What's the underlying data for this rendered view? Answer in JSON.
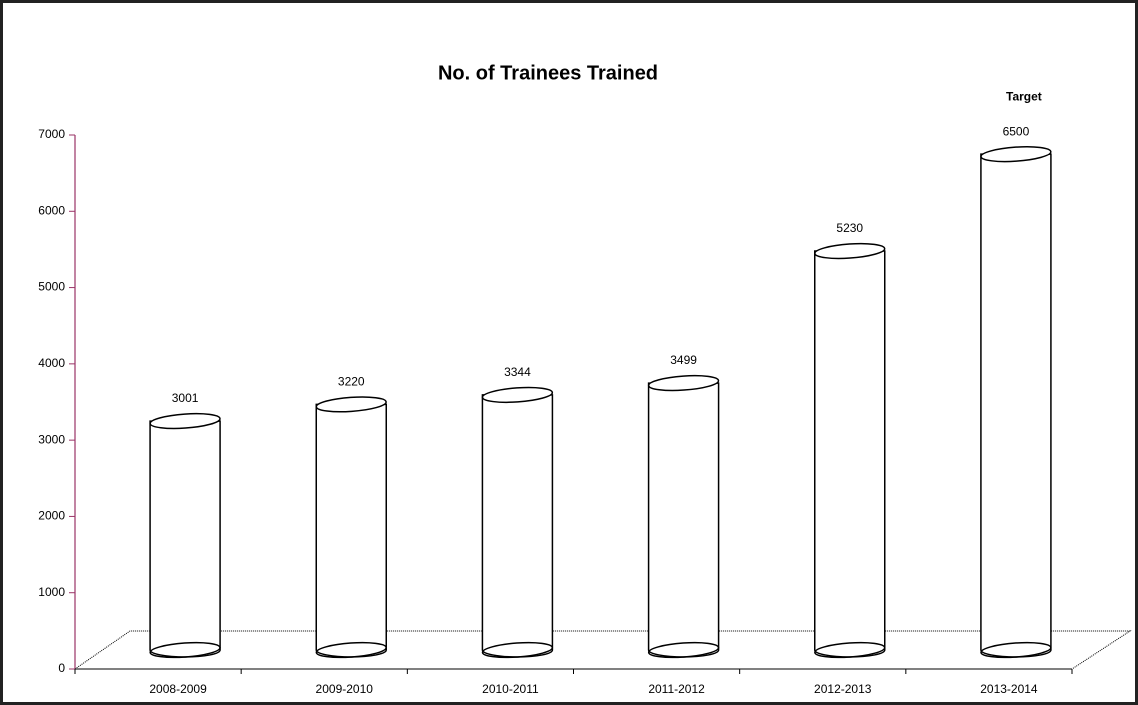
{
  "chart_data": {
    "type": "bar",
    "title": "No. of Trainees Trained",
    "annotation": "Target",
    "categories": [
      "2008-2009",
      "2009-2010",
      "2010-2011",
      "2011-2012",
      "2012-2013",
      "2013-2014"
    ],
    "values": [
      3001,
      3220,
      3344,
      3499,
      5230,
      6500
    ],
    "color": "#ffffff",
    "ylim": [
      0,
      7000
    ],
    "yticks": [
      0,
      1000,
      2000,
      3000,
      4000,
      5000,
      6000,
      7000
    ],
    "grid": false
  }
}
